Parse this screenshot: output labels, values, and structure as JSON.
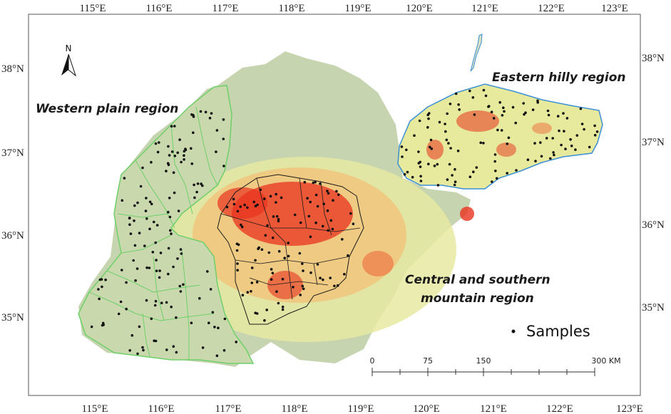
{
  "axes": {
    "longitude_ticks": [
      "115°E",
      "116°E",
      "117°E",
      "118°E",
      "119°E",
      "120°E",
      "121°E",
      "122°E",
      "123°E"
    ],
    "latitude_ticks": [
      "38°N",
      "37°N",
      "36°N",
      "35°N"
    ]
  },
  "north_arrow": {
    "label": "N",
    "icon": "north-arrow-icon"
  },
  "regions": {
    "western": "Western plain region",
    "eastern": "Eastern hilly region",
    "central_line1": "Central and southern",
    "central_line2": "mountain region"
  },
  "legend": {
    "samples_label": "Samples",
    "marker_color": "#111111"
  },
  "scale_bar": {
    "ticks": [
      "0",
      "75",
      "150",
      "300 KM"
    ]
  },
  "colors": {
    "plain_fill": "#c9d8ad",
    "lowland_fill": "#c3d3b2",
    "western_border": "#6fd06a",
    "eastern_border": "#3b8fd6",
    "central_border": "#1a1a1a",
    "elevation_high": "#e8321e",
    "elevation_mid": "#f0a060",
    "elevation_low": "#eef0a8"
  }
}
